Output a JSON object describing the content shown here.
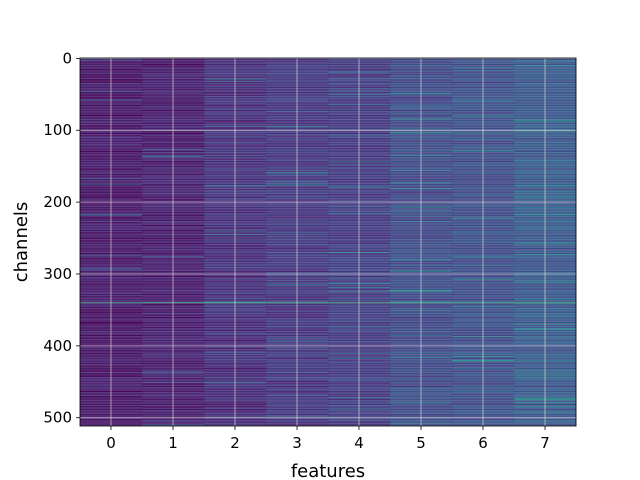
{
  "chart_data": {
    "type": "heatmap",
    "title": "",
    "xlabel": "features",
    "ylabel": "channels",
    "xlim": [
      -0.5,
      7.5
    ],
    "ylim": [
      511.5,
      -0.5
    ],
    "y_inverted": true,
    "grid": true,
    "colormap": "viridis",
    "rows": 512,
    "columns": 8,
    "x_ticks": [
      0,
      1,
      2,
      3,
      4,
      5,
      6,
      7
    ],
    "x_tick_labels": [
      "0",
      "1",
      "2",
      "3",
      "4",
      "5",
      "6",
      "7"
    ],
    "y_ticks": [
      0,
      100,
      200,
      300,
      400,
      500
    ],
    "y_tick_labels": [
      "0",
      "100",
      "200",
      "300",
      "400",
      "500"
    ],
    "column_mean_level": [
      0.08,
      0.1,
      0.16,
      0.2,
      0.22,
      0.28,
      0.3,
      0.34
    ],
    "highlighted_rows": [
      {
        "channel": 340,
        "columns": [
          0,
          1,
          2,
          3,
          4,
          5,
          6,
          7
        ],
        "level": 0.85
      },
      {
        "channel": 218,
        "columns": [
          0
        ],
        "level": 0.6
      },
      {
        "channel": 175,
        "columns": [
          0
        ],
        "level": 0.45
      },
      {
        "channel": 270,
        "columns": [
          4
        ],
        "level": 0.65
      },
      {
        "channel": 280,
        "columns": [
          5
        ],
        "level": 0.6
      },
      {
        "channel": 222,
        "columns": [
          6
        ],
        "level": 0.65
      },
      {
        "channel": 30,
        "columns": [
          6
        ],
        "level": 0.55
      },
      {
        "channel": 10,
        "columns": [
          7
        ],
        "level": 0.6
      },
      {
        "channel": 193,
        "columns": [
          7
        ],
        "level": 0.6
      },
      {
        "channel": 435,
        "columns": [
          7
        ],
        "level": 0.6
      },
      {
        "channel": 478,
        "columns": [
          5
        ],
        "level": 0.55
      }
    ],
    "colors": {
      "base": "#3b528b",
      "low": "#46317e",
      "mid": "#21918c",
      "high": "#27ad81",
      "peak": "#bddf26",
      "grid": "#dddddd"
    }
  }
}
